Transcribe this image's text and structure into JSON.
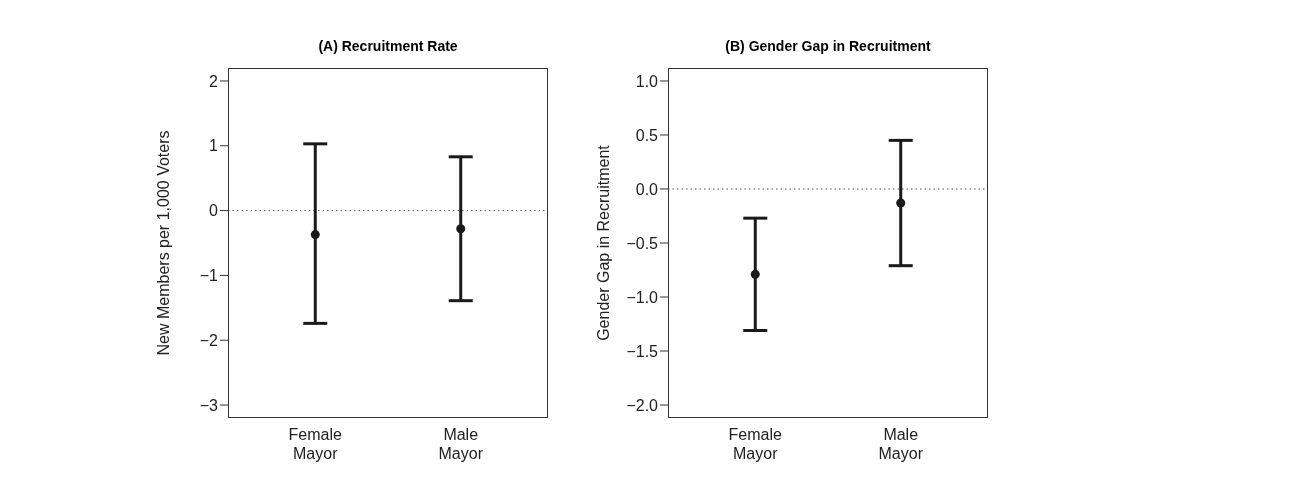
{
  "chart_data": [
    {
      "type": "scatter",
      "title": "(A) Recruitment Rate",
      "ylabel": "New Members per 1,000 Voters",
      "categories": [
        "Female Mayor",
        "Male Mayor"
      ],
      "series": [
        {
          "color": "#1a1a1a",
          "values": [
            -0.37,
            -0.28
          ],
          "errors": [
            [
              -1.74,
              1.03
            ],
            [
              -1.39,
              0.83
            ]
          ]
        }
      ],
      "ylim": [
        -3.2,
        2.2
      ],
      "yticks": [
        {
          "value": -3,
          "label": "−3"
        },
        {
          "value": -2,
          "label": "−2"
        },
        {
          "value": -1,
          "label": "−1"
        },
        0,
        1,
        2
      ],
      "ref_lines": [
        {
          "axis": "y",
          "value": 0,
          "color": "#555555",
          "line_style": "dotted"
        }
      ],
      "grid": false,
      "legend": false,
      "marker": "circle"
    },
    {
      "type": "scatter",
      "title": "(B) Gender Gap in Recruitment",
      "ylabel": "Gender Gap in Recruitment",
      "categories": [
        "Female Mayor",
        "Male Mayor"
      ],
      "series": [
        {
          "color": "#1a1a1a",
          "values": [
            -0.79,
            -0.13
          ],
          "errors": [
            [
              -1.31,
              -0.27
            ],
            [
              -0.71,
              0.45
            ]
          ]
        }
      ],
      "ylim": [
        -2.12,
        1.12
      ],
      "yticks": [
        {
          "value": -2,
          "label": "−2.0"
        },
        {
          "value": -1.5,
          "label": "−1.5"
        },
        {
          "value": -1,
          "label": "−1.0"
        },
        {
          "value": -0.5,
          "label": "−0.5"
        },
        {
          "value": 0,
          "label": "0.0"
        },
        {
          "value": 0.5,
          "label": "0.5"
        },
        {
          "value": 1,
          "label": "1.0"
        }
      ],
      "ref_lines": [
        {
          "axis": "y",
          "value": 0,
          "color": "#555555",
          "line_style": "dotted"
        }
      ],
      "grid": false,
      "legend": false,
      "marker": "circle"
    }
  ]
}
